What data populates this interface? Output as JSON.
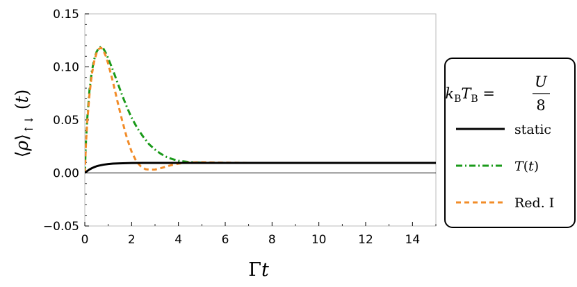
{
  "chart_data": {
    "type": "line",
    "xlabel": "Γt",
    "ylabel": "⟨ρ⟩↑↓ (t)",
    "xlim": [
      0,
      15
    ],
    "ylim": [
      -0.05,
      0.15
    ],
    "x_ticks": [
      0,
      2,
      4,
      6,
      8,
      10,
      12,
      14
    ],
    "y_ticks": [
      -0.05,
      0.0,
      0.05,
      0.1,
      0.15
    ],
    "y_tick_labels": [
      "−0.05",
      "0.00",
      "0.05",
      "0.10",
      "0.15"
    ],
    "grid": false,
    "legend_placement": "right",
    "legend_title": {
      "lhs": "kBTB =",
      "numerator": "U",
      "denominator": "8"
    },
    "series": [
      {
        "name": "static",
        "color": "#000000",
        "style": "solid",
        "x": [
          0,
          0.1,
          0.2,
          0.3,
          0.4,
          0.5,
          0.6,
          0.8,
          1.0,
          1.2,
          1.5,
          2.0,
          2.5,
          3.0,
          4.0,
          6.0,
          8.0,
          10.0,
          12.0,
          15.0
        ],
        "y": [
          0,
          0.0018,
          0.0033,
          0.0045,
          0.0055,
          0.0063,
          0.0069,
          0.0078,
          0.0084,
          0.0088,
          0.0091,
          0.0094,
          0.0095,
          0.0095,
          0.0095,
          0.0095,
          0.0095,
          0.0095,
          0.0095,
          0.0095
        ]
      },
      {
        "name": "T(t)",
        "color": "#1a9a1a",
        "style": "dashdot",
        "x": [
          0,
          0.05,
          0.1,
          0.2,
          0.3,
          0.4,
          0.5,
          0.6,
          0.7,
          0.8,
          0.9,
          1.0,
          1.2,
          1.4,
          1.6,
          1.8,
          2.0,
          2.25,
          2.5,
          2.75,
          3.0,
          3.25,
          3.5,
          3.75,
          4.0,
          4.5,
          5.0,
          6.0,
          8.0,
          10.0,
          12.0,
          15.0
        ],
        "y": [
          0,
          0.03,
          0.05,
          0.078,
          0.096,
          0.107,
          0.114,
          0.118,
          0.119,
          0.117,
          0.113,
          0.108,
          0.097,
          0.085,
          0.073,
          0.062,
          0.052,
          0.042,
          0.034,
          0.027,
          0.022,
          0.018,
          0.015,
          0.013,
          0.0115,
          0.0102,
          0.0097,
          0.0095,
          0.0095,
          0.0095,
          0.0095,
          0.0095
        ]
      },
      {
        "name": "Red. I",
        "color": "#f28c28",
        "style": "dashed",
        "x": [
          0,
          0.05,
          0.1,
          0.2,
          0.3,
          0.4,
          0.5,
          0.6,
          0.7,
          0.8,
          0.9,
          1.0,
          1.2,
          1.4,
          1.6,
          1.8,
          2.0,
          2.2,
          2.4,
          2.6,
          2.8,
          3.0,
          3.2,
          3.4,
          3.6,
          3.8,
          4.0,
          4.3,
          4.6,
          5.0,
          5.5,
          6.0,
          7.0,
          8.0,
          10.0,
          12.0,
          15.0
        ],
        "y": [
          0,
          0.028,
          0.047,
          0.074,
          0.093,
          0.105,
          0.113,
          0.117,
          0.118,
          0.115,
          0.11,
          0.103,
          0.086,
          0.067,
          0.049,
          0.033,
          0.02,
          0.011,
          0.006,
          0.0035,
          0.003,
          0.0032,
          0.0042,
          0.0055,
          0.0068,
          0.0079,
          0.0088,
          0.0096,
          0.01,
          0.0101,
          0.0099,
          0.0097,
          0.0095,
          0.0095,
          0.0095,
          0.0095,
          0.0095
        ]
      }
    ]
  }
}
